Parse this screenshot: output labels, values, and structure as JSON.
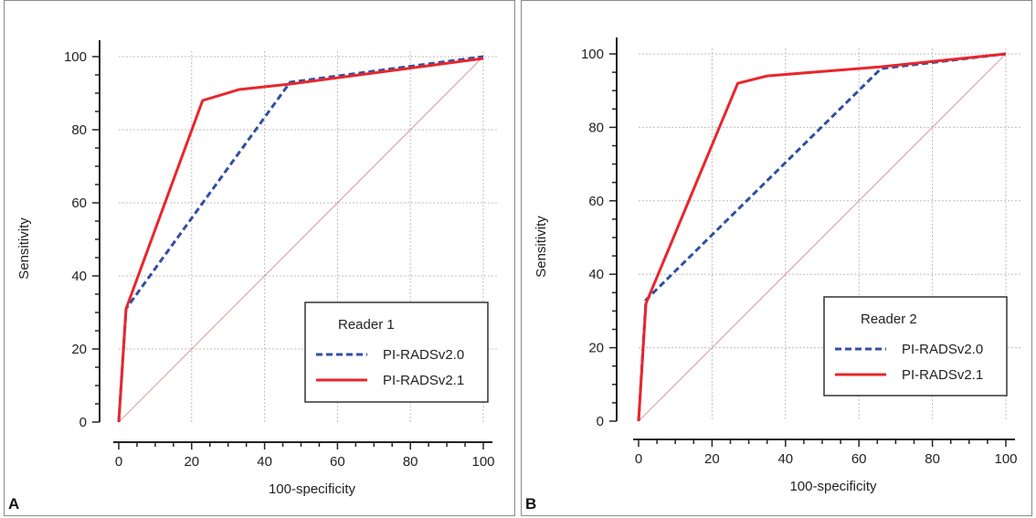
{
  "colors": {
    "series_v20": "#2f4fa3",
    "series_v21": "#e8262c",
    "reference_line": "#dca7a5",
    "grid": "#bdbdbd",
    "axis": "#222222",
    "frame": "#8a8a8a"
  },
  "chart_data": [
    {
      "type": "line",
      "panel_label": "A",
      "title": "",
      "xlabel": "100-specificity",
      "ylabel": "Sensitivity",
      "xlim": [
        0,
        100
      ],
      "ylim": [
        0,
        100
      ],
      "x_ticks": [
        "0",
        "20",
        "40",
        "60",
        "80",
        "100"
      ],
      "y_ticks": [
        "0",
        "20",
        "40",
        "60",
        "80",
        "100"
      ],
      "grid": true,
      "legend_position": "bottom-right",
      "legend_title": "Reader 1",
      "series": [
        {
          "name": "PI-RADSv2.0",
          "style": "dashed",
          "x": [
            0,
            2,
            47,
            100
          ],
          "y": [
            0,
            31,
            93,
            100
          ]
        },
        {
          "name": "PI-RADSv2.1",
          "style": "solid",
          "x": [
            0,
            2,
            23,
            33,
            47,
            100
          ],
          "y": [
            0,
            31,
            88,
            91,
            92.5,
            99.5
          ]
        }
      ],
      "reference_line": {
        "x": [
          0,
          100
        ],
        "y": [
          0,
          100
        ]
      }
    },
    {
      "type": "line",
      "panel_label": "B",
      "title": "",
      "xlabel": "100-specificity",
      "ylabel": "Sensitivity",
      "xlim": [
        0,
        100
      ],
      "ylim": [
        0,
        100
      ],
      "x_ticks": [
        "0",
        "20",
        "40",
        "60",
        "80",
        "100"
      ],
      "y_ticks": [
        "0",
        "20",
        "40",
        "60",
        "80",
        "100"
      ],
      "grid": true,
      "legend_position": "bottom-right",
      "legend_title": "Reader 2",
      "series": [
        {
          "name": "PI-RADSv2.0",
          "style": "dashed",
          "x": [
            0,
            2,
            66,
            100
          ],
          "y": [
            0,
            33,
            96,
            100
          ]
        },
        {
          "name": "PI-RADSv2.1",
          "style": "solid",
          "x": [
            0,
            2,
            27,
            35,
            66,
            100
          ],
          "y": [
            0,
            32,
            92,
            94,
            96.5,
            100
          ]
        }
      ],
      "reference_line": {
        "x": [
          0,
          100
        ],
        "y": [
          0,
          100
        ]
      }
    }
  ]
}
